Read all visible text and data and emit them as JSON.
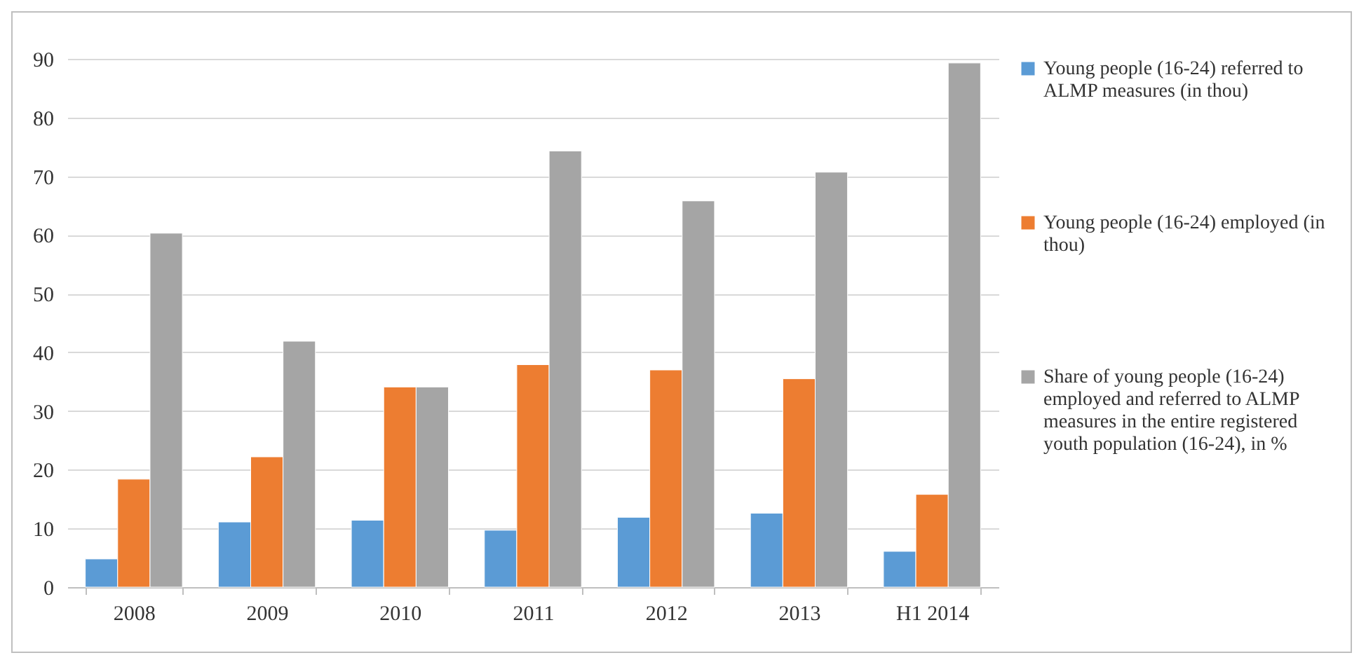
{
  "chart_data": {
    "type": "bar",
    "categories": [
      "2008",
      "2009",
      "2010",
      "2011",
      "2012",
      "2013",
      "H1 2014"
    ],
    "series": [
      {
        "name": "Young people (16-24) referred to ALMP measures (in thou)",
        "color": "#5b9bd5",
        "values": [
          4.8,
          11.1,
          11.4,
          9.7,
          11.9,
          12.6,
          6.1
        ]
      },
      {
        "name": "Young people (16-24) employed (in thou)",
        "color": "#ed7d31",
        "values": [
          18.4,
          22.2,
          34.1,
          37.9,
          37.0,
          35.5,
          15.8
        ]
      },
      {
        "name": "Share of young people (16-24) employed and referred to ALMP measures in the entire registered youth population (16-24), in %",
        "color": "#a5a5a5",
        "values": [
          60.3,
          41.9,
          34.1,
          74.3,
          65.8,
          70.7,
          89.3
        ]
      }
    ],
    "ylim": [
      0,
      90
    ],
    "yticks": [
      0,
      10,
      20,
      30,
      40,
      50,
      60,
      70,
      80,
      90
    ],
    "grid": "y",
    "legend": "right"
  }
}
